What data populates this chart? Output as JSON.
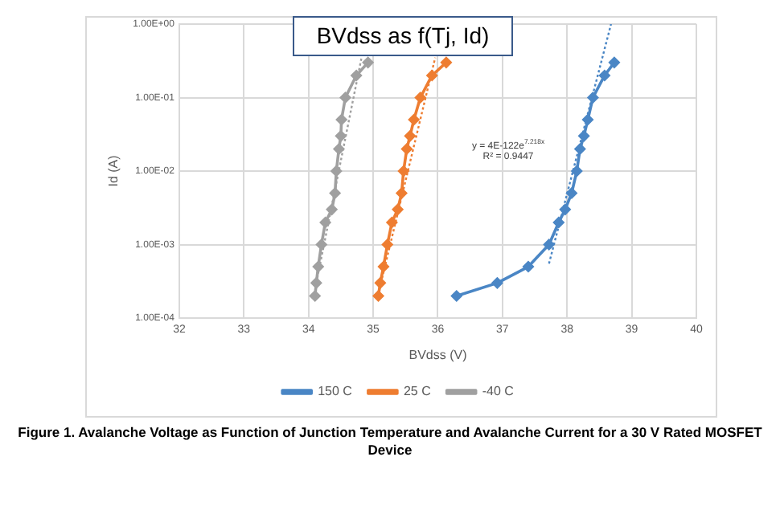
{
  "chart_data": {
    "type": "scatter",
    "title": "BVdss as f(Tj, Id)",
    "xlabel": "BVdss (V)",
    "ylabel": "Id (A)",
    "xlim": [
      32,
      40
    ],
    "xticks": [
      32,
      33,
      34,
      35,
      36,
      37,
      38,
      39,
      40
    ],
    "ylim": [
      0.0001,
      1
    ],
    "yticks": [
      {
        "value": 0.0001,
        "label": "1.00E-04"
      },
      {
        "value": 0.001,
        "label": "1.00E-03"
      },
      {
        "value": 0.01,
        "label": "1.00E-02"
      },
      {
        "value": 0.1,
        "label": "1.00E-01"
      },
      {
        "value": 1,
        "label": "1.00E+00"
      }
    ],
    "log": "y",
    "grid": true,
    "legend": "bottom",
    "marker": "diamond",
    "line_style": "solid",
    "series": [
      {
        "name": "150 C",
        "type": "line",
        "color": "#4a86c5",
        "x": [
          36.29,
          36.92,
          37.4,
          37.72,
          37.87,
          37.97,
          38.07,
          38.15,
          38.2,
          38.26,
          38.32,
          38.4,
          38.58,
          38.73
        ],
        "values": [
          0.0002,
          0.0003,
          0.0005,
          0.001,
          0.002,
          0.003,
          0.005,
          0.01,
          0.02,
          0.03,
          0.05,
          0.1,
          0.2,
          0.3
        ]
      },
      {
        "name": "25 C",
        "type": "line",
        "color": "#ee7d31",
        "x": [
          35.08,
          35.11,
          35.16,
          35.22,
          35.29,
          35.38,
          35.44,
          35.47,
          35.52,
          35.57,
          35.63,
          35.73,
          35.91,
          36.13
        ],
        "values": [
          0.0002,
          0.0003,
          0.0005,
          0.001,
          0.002,
          0.003,
          0.005,
          0.01,
          0.02,
          0.03,
          0.05,
          0.1,
          0.2,
          0.3
        ]
      },
      {
        "name": "-40 C",
        "type": "line",
        "color": "#a0a0a0",
        "x": [
          34.1,
          34.12,
          34.15,
          34.2,
          34.26,
          34.36,
          34.41,
          34.43,
          34.47,
          34.5,
          34.51,
          34.57,
          34.74,
          34.92
        ],
        "values": [
          0.0002,
          0.0003,
          0.0005,
          0.001,
          0.002,
          0.003,
          0.005,
          0.01,
          0.02,
          0.03,
          0.05,
          0.1,
          0.2,
          0.3
        ]
      },
      {
        "type": "line",
        "color": "#4a86c5",
        "line_style": "dotted",
        "marker": "none",
        "x": [
          37.72,
          38.68
        ],
        "values": [
          0.00055,
          1
        ]
      },
      {
        "type": "line",
        "color": "#ee7d31",
        "line_style": "dotted",
        "marker": "none",
        "x": [
          35.12,
          35.96
        ],
        "values": [
          0.0003,
          0.35
        ]
      },
      {
        "type": "line",
        "color": "#a0a0a0",
        "line_style": "dotted",
        "marker": "none",
        "x": [
          34.12,
          34.82
        ],
        "values": [
          0.0003,
          0.35
        ]
      }
    ],
    "annotations": [
      "y = 4E-122e$^{7.218x}$",
      "R² = 0.9447",
      "Figure 1. Avalanche Voltage as Function of Junction Temperature and Avalanche Current for a 30 V Rated MOSFET Device"
    ]
  }
}
